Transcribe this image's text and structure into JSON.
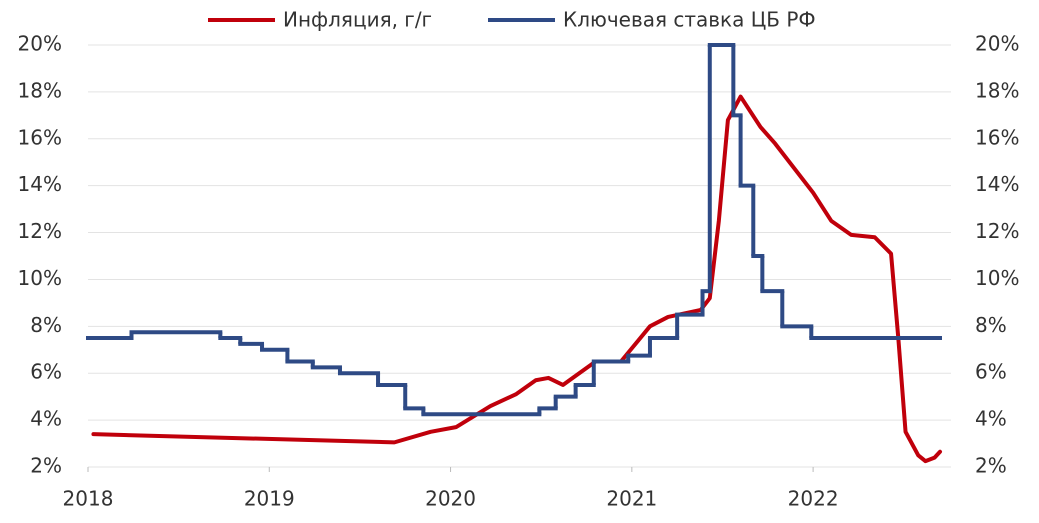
{
  "chart_data": {
    "type": "line",
    "xlim": [
      2018,
      2022.7
    ],
    "xticks": [
      2018,
      2019,
      2020,
      2021,
      2022
    ],
    "ylim": [
      2,
      20
    ],
    "yticks": [
      {
        "value": 2,
        "label": "2%"
      },
      {
        "value": 4,
        "label": "4%"
      },
      {
        "value": 6,
        "label": "6%"
      },
      {
        "value": 8,
        "label": "8%"
      },
      {
        "value": 10,
        "label": "10%"
      },
      {
        "value": 12,
        "label": "12%"
      },
      {
        "value": 14,
        "label": "14%"
      },
      {
        "value": 16,
        "label": "16%"
      },
      {
        "value": 18,
        "label": "18%"
      },
      {
        "value": 20,
        "label": "20%"
      }
    ],
    "y2lim": [
      2,
      20
    ],
    "y2ticks": [
      {
        "value": 2,
        "label": "2%"
      },
      {
        "value": 4,
        "label": "4%"
      },
      {
        "value": 6,
        "label": "6%"
      },
      {
        "value": 8,
        "label": "8%"
      },
      {
        "value": 10,
        "label": "10%"
      },
      {
        "value": 12,
        "label": "12%"
      },
      {
        "value": 14,
        "label": "14%"
      },
      {
        "value": 16,
        "label": "16%"
      },
      {
        "value": 18,
        "label": "18%"
      },
      {
        "value": 20,
        "label": "20%"
      }
    ],
    "grid": true,
    "legend": "top",
    "series": [
      {
        "name": "Инфляция, г/г",
        "color": "#c0000b",
        "x": [
          2018.03,
          2019.69,
          2019.89,
          2020.03,
          2020.22,
          2020.36,
          2020.47,
          2020.54,
          2020.62,
          2020.8,
          2020.94,
          2021.1,
          2021.2,
          2021.38,
          2021.43,
          2021.48,
          2021.53,
          2021.6,
          2021.71,
          2021.79,
          2022.0,
          2022.1,
          2022.21,
          2022.34,
          2022.43,
          2022.47,
          2022.51,
          2022.58,
          2022.62,
          2022.67,
          2022.7
        ],
        "values": [
          3.4,
          3.05,
          3.5,
          3.7,
          4.6,
          5.1,
          5.7,
          5.8,
          5.5,
          6.5,
          6.5,
          8.0,
          8.4,
          8.7,
          9.2,
          12.5,
          16.8,
          17.8,
          16.5,
          15.8,
          13.7,
          12.5,
          11.9,
          11.8,
          11.1,
          7.5,
          3.5,
          2.5,
          2.25,
          2.4,
          2.65
        ]
      },
      {
        "name": "Ключевая ставка ЦБ РФ",
        "color": "#2e4a85",
        "step": "post",
        "axis": "y2",
        "x": [
          2018.0,
          2018.24,
          2018.73,
          2018.84,
          2018.96,
          2019.1,
          2019.24,
          2019.39,
          2019.6,
          2019.75,
          2019.85,
          2020.49,
          2020.58,
          2020.69,
          2020.79,
          2020.98,
          2021.1,
          2021.25,
          2021.39,
          2021.43,
          2021.56,
          2021.6,
          2021.67,
          2021.72,
          2021.83,
          2021.99
        ],
        "values": [
          7.5,
          7.75,
          7.5,
          7.25,
          7.0,
          6.5,
          6.25,
          6.0,
          5.5,
          4.5,
          4.25,
          4.5,
          5.0,
          5.5,
          6.5,
          6.75,
          7.5,
          8.5,
          9.5,
          20,
          17,
          14,
          11,
          9.5,
          8,
          7.5
        ]
      }
    ]
  }
}
